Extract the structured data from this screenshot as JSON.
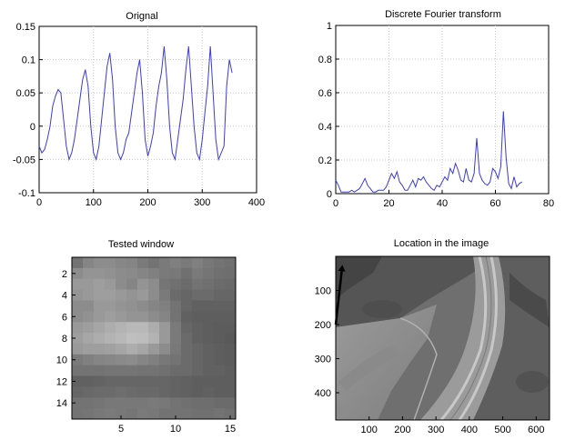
{
  "chart_data": [
    {
      "type": "line",
      "title": "Orignal",
      "xlim": [
        0,
        400
      ],
      "ylim": [
        -0.1,
        0.15
      ],
      "xticks": [
        "0",
        "100",
        "200",
        "300",
        "400"
      ],
      "yticks": [
        "-0.1",
        "-0.05",
        "0",
        "0.05",
        "0.1",
        "0.15"
      ],
      "grid": true,
      "color": "#3b3bd6",
      "x": [
        0,
        5,
        10,
        15,
        20,
        25,
        30,
        35,
        40,
        45,
        50,
        55,
        60,
        65,
        70,
        75,
        80,
        85,
        90,
        95,
        100,
        105,
        110,
        115,
        120,
        125,
        130,
        135,
        140,
        145,
        150,
        155,
        160,
        165,
        170,
        175,
        180,
        185,
        190,
        195,
        200,
        205,
        210,
        215,
        220,
        225,
        230,
        235,
        240,
        245,
        250,
        255,
        260,
        265,
        270,
        275,
        280,
        285,
        290,
        295,
        300,
        305,
        310,
        315,
        320,
        325,
        330,
        335,
        340,
        345,
        350,
        355
      ],
      "y": [
        -0.03,
        -0.04,
        -0.035,
        -0.02,
        0.0,
        0.03,
        0.045,
        0.055,
        0.05,
        0.01,
        -0.03,
        -0.05,
        -0.04,
        -0.02,
        0.01,
        0.04,
        0.07,
        0.085,
        0.06,
        0.0,
        -0.04,
        -0.05,
        -0.03,
        0.01,
        0.05,
        0.09,
        0.11,
        0.07,
        0.0,
        -0.04,
        -0.05,
        -0.04,
        -0.02,
        -0.01,
        0.02,
        0.05,
        0.08,
        0.1,
        0.05,
        -0.02,
        -0.045,
        -0.03,
        -0.01,
        0.03,
        0.06,
        0.08,
        0.12,
        0.07,
        0.0,
        -0.04,
        -0.05,
        -0.02,
        0.01,
        0.04,
        0.085,
        0.12,
        0.06,
        0.0,
        -0.04,
        -0.05,
        -0.02,
        0.02,
        0.06,
        0.12,
        0.05,
        -0.02,
        -0.05,
        -0.04,
        -0.03,
        0.06,
        0.1,
        0.08
      ]
    },
    {
      "type": "line",
      "title": "Discrete Fourier transform",
      "xlim": [
        0,
        80
      ],
      "ylim": [
        0,
        1
      ],
      "xticks": [
        "0",
        "20",
        "40",
        "60",
        "80"
      ],
      "yticks": [
        "0",
        "0.2",
        "0.4",
        "0.6",
        "0.8",
        "1"
      ],
      "grid": true,
      "color": "#3b3bd6",
      "x": [
        0,
        1,
        2,
        3,
        4,
        5,
        6,
        7,
        8,
        9,
        10,
        11,
        12,
        13,
        14,
        15,
        16,
        17,
        18,
        19,
        20,
        21,
        22,
        23,
        24,
        25,
        26,
        27,
        28,
        29,
        30,
        31,
        32,
        33,
        34,
        35,
        36,
        37,
        38,
        39,
        40,
        41,
        42,
        43,
        44,
        45,
        46,
        47,
        48,
        49,
        50,
        51,
        52,
        53,
        54,
        55,
        56,
        57,
        58,
        59,
        60,
        61,
        62,
        63,
        64,
        65,
        66,
        67,
        68,
        69,
        70
      ],
      "y": [
        0.08,
        0.05,
        0.01,
        0.01,
        0.01,
        0.01,
        0.02,
        0.01,
        0.02,
        0.03,
        0.06,
        0.09,
        0.05,
        0.03,
        0.01,
        0.01,
        0.02,
        0.02,
        0.02,
        0.04,
        0.08,
        0.12,
        0.09,
        0.13,
        0.07,
        0.05,
        0.02,
        0.02,
        0.05,
        0.08,
        0.04,
        0.09,
        0.08,
        0.1,
        0.07,
        0.05,
        0.03,
        0.02,
        0.05,
        0.04,
        0.07,
        0.1,
        0.08,
        0.15,
        0.12,
        0.18,
        0.14,
        0.08,
        0.07,
        0.15,
        0.08,
        0.07,
        0.12,
        0.33,
        0.12,
        0.08,
        0.06,
        0.05,
        0.07,
        0.15,
        0.13,
        0.09,
        0.16,
        0.49,
        0.22,
        0.06,
        0.03,
        0.1,
        0.04,
        0.06,
        0.07
      ]
    },
    {
      "type": "heatmap",
      "title": "Tested window",
      "xlim": [
        0.5,
        15.5
      ],
      "ylim": [
        15.5,
        0.5
      ],
      "xticks": [
        "5",
        "10",
        "15"
      ],
      "yticks": [
        "2",
        "4",
        "6",
        "8",
        "10",
        "12",
        "14"
      ],
      "colormap": "gray",
      "values": [
        [
          0.45,
          0.52,
          0.55,
          0.55,
          0.53,
          0.52,
          0.48,
          0.45,
          0.48,
          0.5,
          0.48,
          0.5,
          0.47,
          0.45,
          0.44
        ],
        [
          0.55,
          0.58,
          0.58,
          0.57,
          0.55,
          0.54,
          0.52,
          0.5,
          0.48,
          0.47,
          0.44,
          0.48,
          0.46,
          0.44,
          0.43
        ],
        [
          0.6,
          0.6,
          0.62,
          0.6,
          0.55,
          0.52,
          0.58,
          0.55,
          0.46,
          0.44,
          0.42,
          0.45,
          0.44,
          0.42,
          0.41
        ],
        [
          0.58,
          0.6,
          0.62,
          0.62,
          0.6,
          0.58,
          0.6,
          0.55,
          0.48,
          0.42,
          0.4,
          0.42,
          0.42,
          0.4,
          0.4
        ],
        [
          0.55,
          0.55,
          0.6,
          0.6,
          0.58,
          0.57,
          0.55,
          0.52,
          0.5,
          0.45,
          0.4,
          0.38,
          0.38,
          0.38,
          0.38
        ],
        [
          0.55,
          0.57,
          0.6,
          0.62,
          0.6,
          0.58,
          0.58,
          0.55,
          0.52,
          0.45,
          0.38,
          0.37,
          0.37,
          0.37,
          0.37
        ],
        [
          0.6,
          0.62,
          0.65,
          0.68,
          0.7,
          0.72,
          0.72,
          0.68,
          0.6,
          0.48,
          0.4,
          0.38,
          0.37,
          0.36,
          0.36
        ],
        [
          0.62,
          0.65,
          0.68,
          0.7,
          0.72,
          0.75,
          0.74,
          0.7,
          0.6,
          0.48,
          0.42,
          0.38,
          0.37,
          0.36,
          0.35
        ],
        [
          0.6,
          0.62,
          0.62,
          0.63,
          0.65,
          0.68,
          0.65,
          0.6,
          0.55,
          0.47,
          0.42,
          0.4,
          0.38,
          0.37,
          0.36
        ],
        [
          0.48,
          0.5,
          0.52,
          0.53,
          0.54,
          0.55,
          0.52,
          0.5,
          0.47,
          0.45,
          0.42,
          0.4,
          0.38,
          0.37,
          0.36
        ],
        [
          0.45,
          0.45,
          0.45,
          0.46,
          0.46,
          0.46,
          0.45,
          0.45,
          0.44,
          0.42,
          0.42,
          0.4,
          0.38,
          0.38,
          0.37
        ],
        [
          0.38,
          0.38,
          0.39,
          0.4,
          0.4,
          0.4,
          0.4,
          0.4,
          0.4,
          0.39,
          0.38,
          0.37,
          0.37,
          0.37,
          0.37
        ],
        [
          0.4,
          0.41,
          0.42,
          0.42,
          0.43,
          0.42,
          0.41,
          0.41,
          0.4,
          0.39,
          0.38,
          0.37,
          0.38,
          0.37,
          0.37
        ],
        [
          0.45,
          0.45,
          0.46,
          0.47,
          0.47,
          0.47,
          0.47,
          0.48,
          0.47,
          0.45,
          0.44,
          0.43,
          0.43,
          0.42,
          0.42
        ],
        [
          0.45,
          0.46,
          0.47,
          0.48,
          0.47,
          0.46,
          0.48,
          0.47,
          0.45,
          0.45,
          0.45,
          0.44,
          0.44,
          0.45,
          0.44
        ]
      ]
    },
    {
      "type": "image",
      "title": "Location in the image",
      "xlim": [
        0,
        640
      ],
      "ylim": [
        480,
        0
      ],
      "xticks": [
        "100",
        "200",
        "300",
        "400",
        "500",
        "600"
      ],
      "yticks": [
        "100",
        "200",
        "300",
        "400"
      ],
      "arrow_from": [
        0,
        200
      ],
      "arrow_to": [
        20,
        25
      ],
      "arrow_color": "#000000"
    }
  ]
}
